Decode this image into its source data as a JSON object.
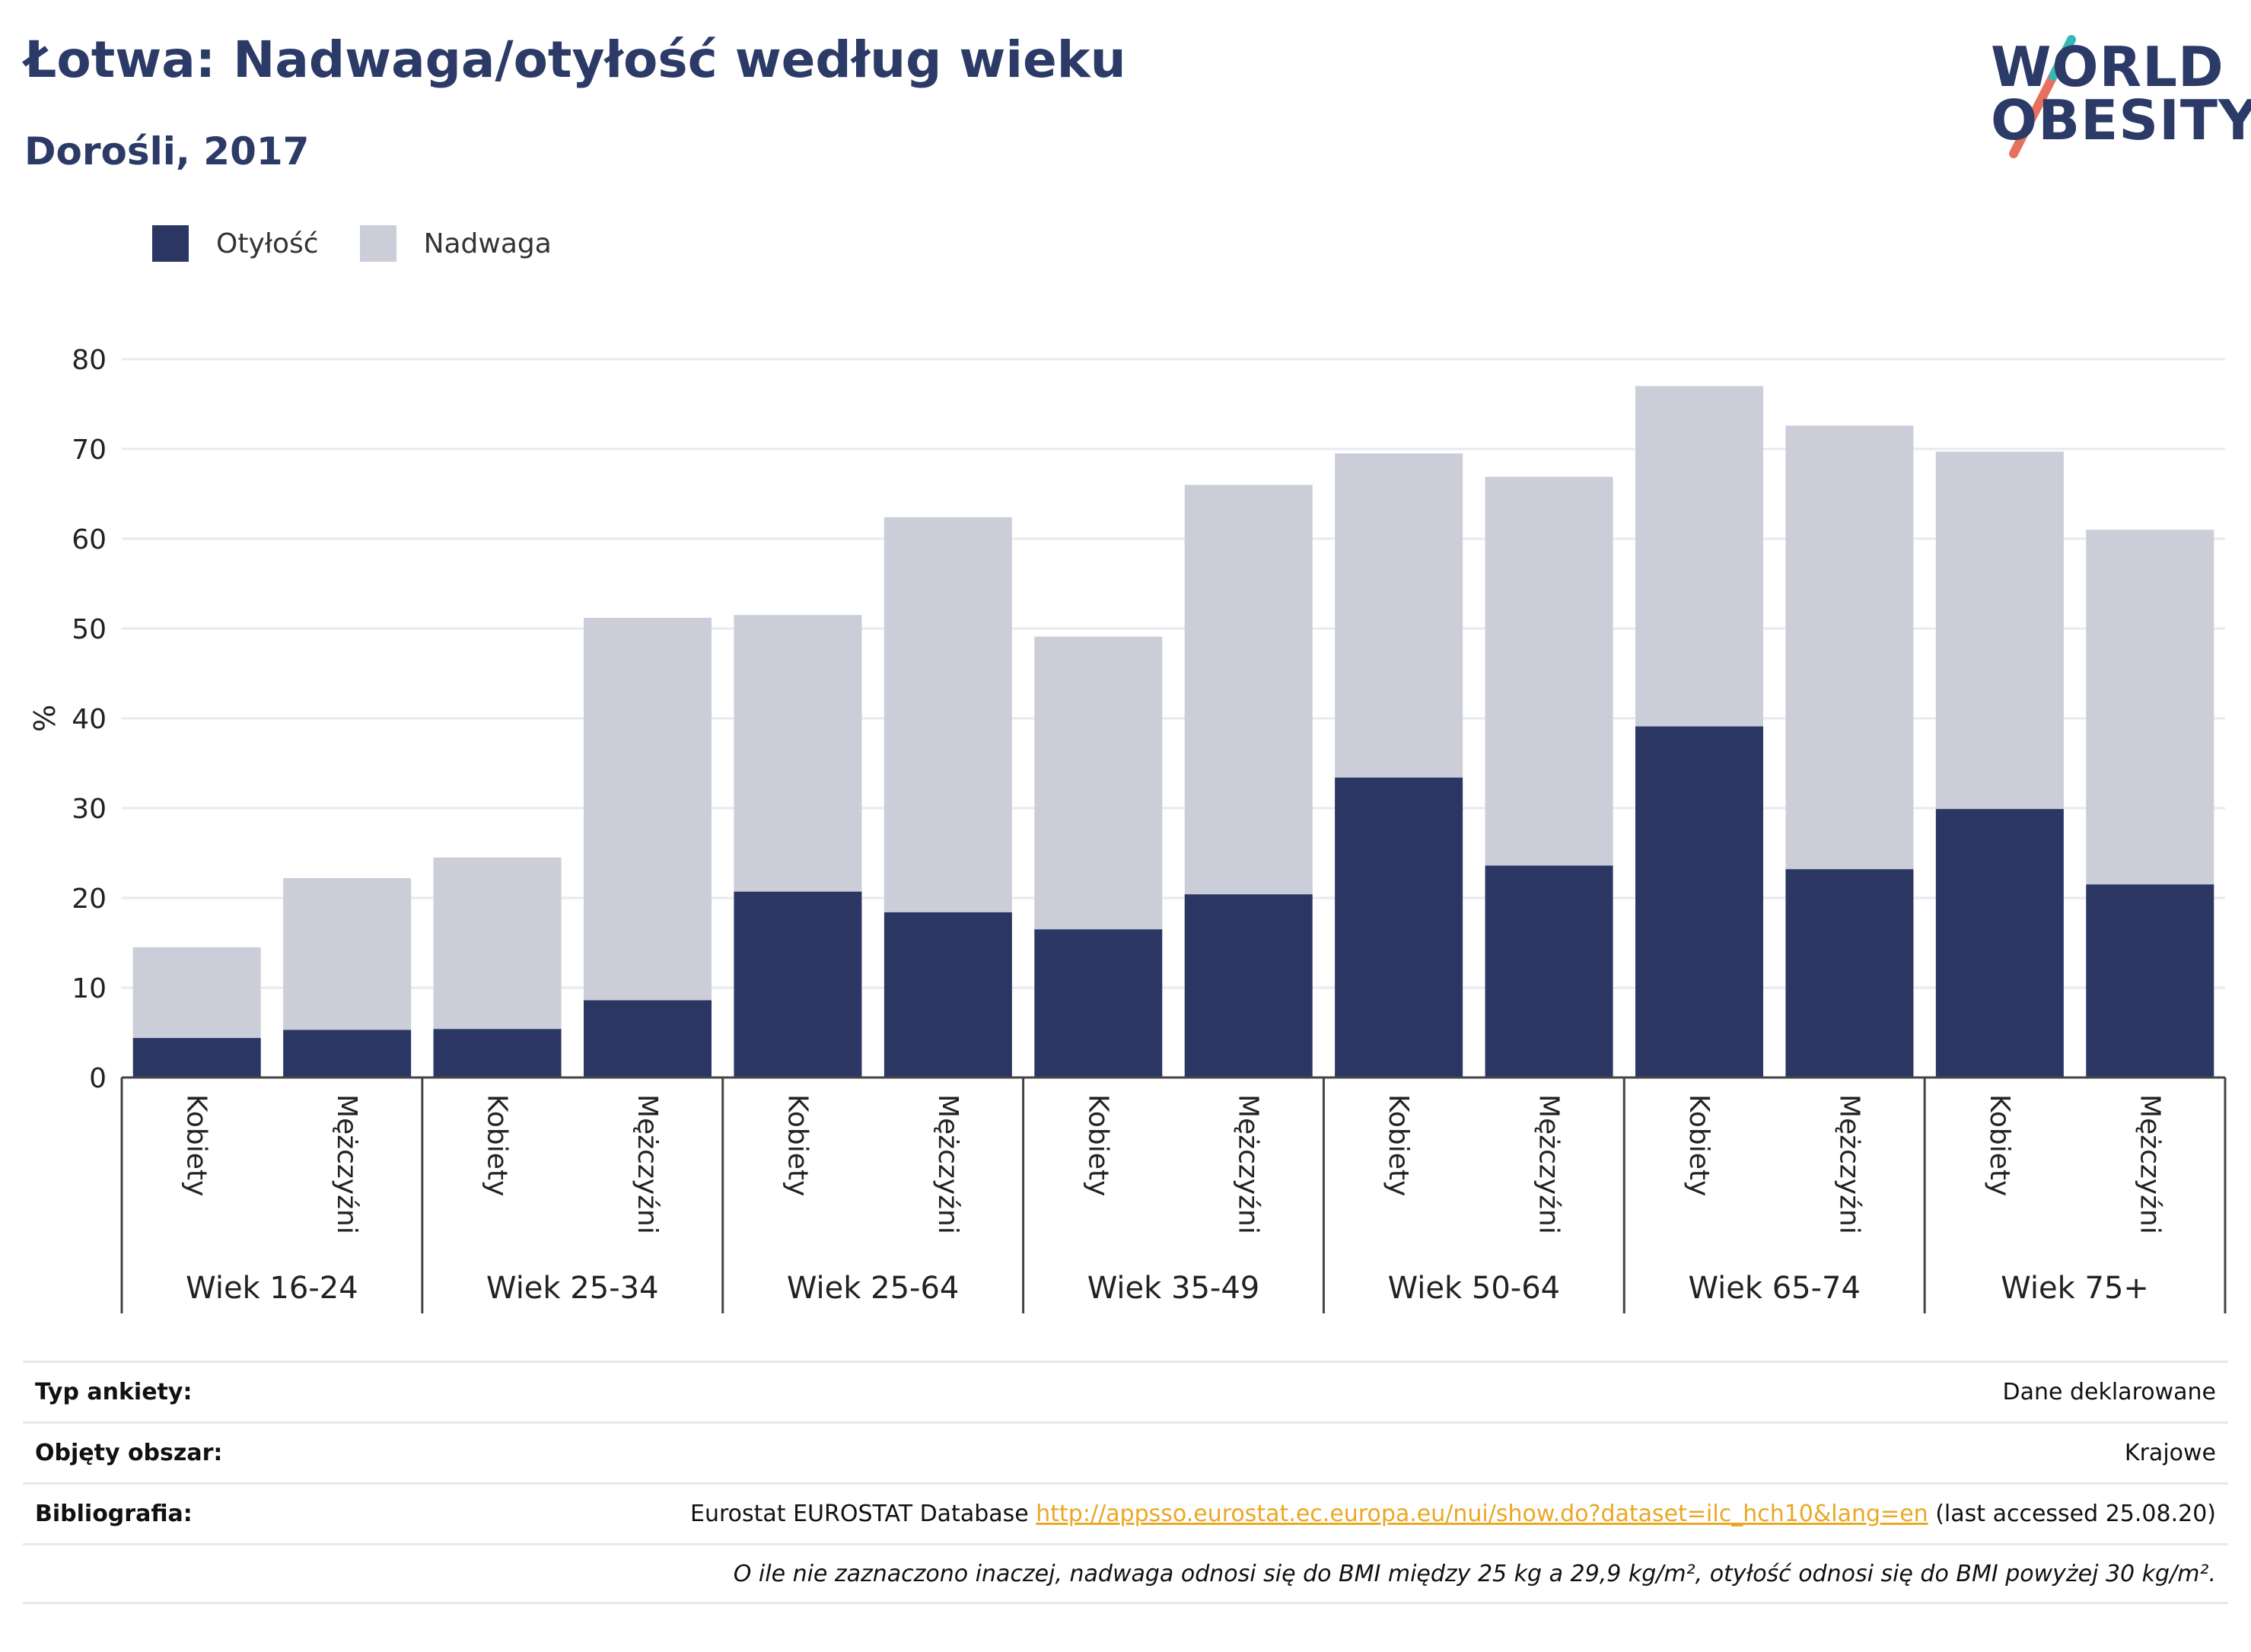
{
  "header": {
    "title": "Łotwa: Nadwaga/otyłość według wieku",
    "subtitle": "Dorośli, 2017"
  },
  "logo": {
    "line1": "WORLD",
    "line2": "OBESITY"
  },
  "legend": [
    {
      "label": "Otyłość",
      "color": "#2b3663"
    },
    {
      "label": "Nadwaga",
      "color": "#cbcdd8"
    }
  ],
  "chart_data": {
    "type": "bar",
    "stacked": true,
    "ylabel": "%",
    "ylim": [
      0,
      80
    ],
    "yticks": [
      0,
      10,
      20,
      30,
      40,
      50,
      60,
      70,
      80
    ],
    "grid": true,
    "groups": [
      "Wiek 16-24",
      "Wiek 25-34",
      "Wiek 25-64",
      "Wiek 35-49",
      "Wiek 50-64",
      "Wiek 65-74",
      "Wiek 75+"
    ],
    "categories": [
      "Kobiety",
      "Mężczyźni",
      "Kobiety",
      "Mężczyźni",
      "Kobiety",
      "Mężczyźni",
      "Kobiety",
      "Mężczyźni",
      "Kobiety",
      "Mężczyźni",
      "Kobiety",
      "Mężczyźni",
      "Kobiety",
      "Mężczyźni"
    ],
    "series": [
      {
        "name": "Otyłość",
        "color": "#2b3663",
        "values": [
          4.4,
          5.3,
          5.4,
          8.6,
          20.7,
          18.4,
          16.5,
          20.4,
          33.4,
          23.6,
          39.1,
          23.2,
          29.9,
          21.5
        ]
      },
      {
        "name": "Nadwaga",
        "color": "#cbcdd8",
        "values": [
          10.1,
          16.9,
          19.1,
          42.6,
          30.8,
          44.0,
          32.6,
          45.6,
          36.1,
          43.3,
          37.9,
          49.4,
          39.8,
          39.5
        ]
      }
    ]
  },
  "footer": {
    "survey_type": {
      "label": "Typ ankiety:",
      "value": "Dane deklarowane"
    },
    "coverage": {
      "label": "Objęty obszar:",
      "value": "Krajowe"
    },
    "bibliography": {
      "label": "Bibliografia:",
      "prefix": "Eurostat EUROSTAT Database",
      "link": "http://appsso.eurostat.ec.europa.eu/nui/show.do?dataset=ilc_hch10&lang=en",
      "suffix": "(last accessed 25.08.20)"
    },
    "note": "O ile nie zaznaczono inaczej, nadwaga odnosi się do BMI między 25 kg a 29,9 kg/m², otyłość odnosi się do BMI powyżej 30 kg/m²."
  }
}
